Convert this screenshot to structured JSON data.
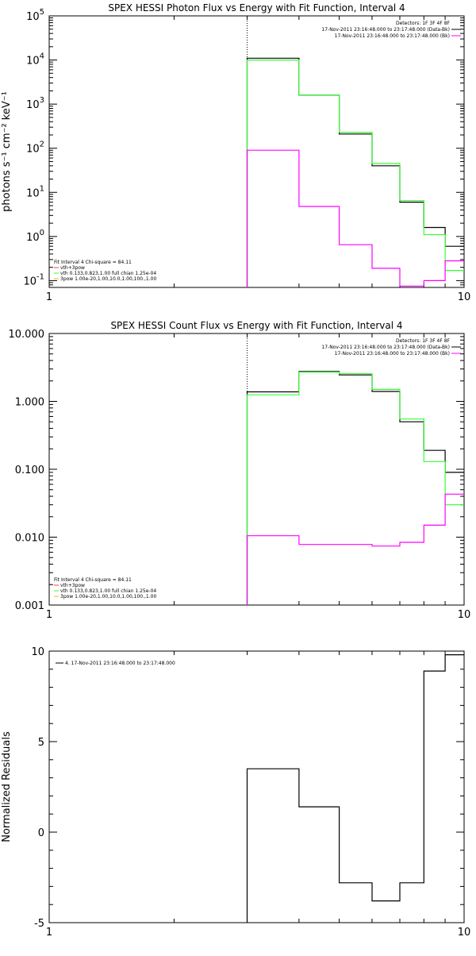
{
  "colors": {
    "background": "#ffffff",
    "axes": "#000000",
    "data": "#000000",
    "total_fit": "#33ff33",
    "vth_fit": "#33ff33",
    "background_spectrum": "#ff00ff",
    "thermal_legend": "#ff3b3b",
    "spov_legend": "#e8c000"
  },
  "chart_data": [
    {
      "type": "line",
      "panel": "photon",
      "title": "SPEX HESSI Photon Flux vs Energy with Fit Function, Interval 4",
      "xlabel": "",
      "ylabel": "photons s⁻¹ cm⁻² keV⁻¹",
      "xscale": "log",
      "yscale": "log",
      "xlim": [
        1,
        10
      ],
      "ylim": [
        0.07,
        100000
      ],
      "xticks": [
        "1",
        "10"
      ],
      "yticks": [
        {
          "label": "10",
          "sup": "-1",
          "v": 0.1
        },
        {
          "label": "10",
          "sup": "0",
          "v": 1
        },
        {
          "label": "10",
          "sup": "1",
          "v": 10
        },
        {
          "label": "10",
          "sup": "2",
          "v": 100
        },
        {
          "label": "10",
          "sup": "3",
          "v": 1000
        },
        {
          "label": "10",
          "sup": "4",
          "v": 10000
        },
        {
          "label": "10",
          "sup": "5",
          "v": 100000
        }
      ],
      "grid": false,
      "marker_line_x": 3,
      "bin_edges": [
        3,
        4,
        5,
        6,
        7,
        8,
        9,
        10
      ],
      "series": [
        {
          "color": "#000000",
          "values": [
            11000,
            1600,
            210,
            40,
            6,
            1.6,
            0.6
          ]
        },
        {
          "color": "#33ff33",
          "values": [
            10000,
            1600,
            230,
            45,
            6.5,
            1.1,
            0.17
          ]
        },
        {
          "color": "#ff00ff",
          "values": [
            90,
            4.8,
            0.65,
            0.19,
            0.075,
            0.1,
            0.28
          ]
        }
      ],
      "legend_top_right": {
        "detectors": "Detectors: 1F 3F 4F 8F",
        "entries": [
          {
            "text": "17-Nov-2011 23:16:48.000 to 23:17:48.000 (Data-Bk)",
            "color": "#000000"
          },
          {
            "text": "17-Nov-2011 23:16:48.000 to 23:17:48.000 (Bk)",
            "color": "#ff00ff"
          }
        ]
      },
      "legend_bottom_left": {
        "header": "Fit Interval  4     Chi-square = 84.11",
        "entries": [
          {
            "text": "vth+3pow",
            "color": "#ff3b3b"
          },
          {
            "text": "vth 0.133,0.823,1.00  full chian 1.25e-04",
            "color": "#33ff33"
          },
          {
            "text": "3pow 1.00e-20,1.00,10.0,1.00,100.,1.00",
            "color": "#e8c000"
          }
        ]
      }
    },
    {
      "type": "line",
      "panel": "count",
      "title": "SPEX HESSI Count Flux vs Energy with Fit Function, Interval 4",
      "xlabel": "",
      "ylabel": "",
      "xscale": "log",
      "yscale": "log",
      "xlim": [
        1,
        10
      ],
      "ylim": [
        0.001,
        10
      ],
      "xticks": [
        "1",
        "10"
      ],
      "yticks": [
        {
          "label": "0.001",
          "sup": "",
          "v": 0.001
        },
        {
          "label": "0.010",
          "sup": "",
          "v": 0.01
        },
        {
          "label": "0.100",
          "sup": "",
          "v": 0.1
        },
        {
          "label": "1.000",
          "sup": "",
          "v": 1
        },
        {
          "label": "10.000",
          "sup": "",
          "v": 10
        }
      ],
      "grid": false,
      "marker_line_x": 3,
      "bin_edges": [
        3,
        4,
        5,
        6,
        7,
        8,
        9,
        10
      ],
      "series": [
        {
          "color": "#000000",
          "values": [
            1.38,
            2.75,
            2.45,
            1.4,
            0.5,
            0.19,
            0.09
          ]
        },
        {
          "color": "#33ff33",
          "values": [
            1.25,
            2.7,
            2.55,
            1.5,
            0.55,
            0.13,
            0.03
          ]
        },
        {
          "color": "#ff00ff",
          "values": [
            0.0105,
            0.0078,
            0.0078,
            0.0074,
            0.0084,
            0.015,
            0.043
          ]
        }
      ],
      "legend_top_right": {
        "detectors": "Detectors: 1F 3F 4F 8F",
        "entries": [
          {
            "text": "17-Nov-2011 23:16:48.000 to 23:17:48.000 (Data-Bk)",
            "color": "#000000"
          },
          {
            "text": "17-Nov-2011 23:16:48.000 to 23:17:48.000 (Bk)",
            "color": "#ff00ff"
          }
        ]
      },
      "legend_bottom_left": {
        "header": "Fit Interval  4     Chi-square = 84.11",
        "entries": [
          {
            "text": "vth+3pow",
            "color": "#ff3b3b"
          },
          {
            "text": "vth 0.133,0.823,1.00  full chian 1.25e-04",
            "color": "#33ff33"
          },
          {
            "text": "3pow 1.00e-20,1.00,10.0,1.00,100.,1.00",
            "color": "#e8c000"
          }
        ]
      }
    },
    {
      "type": "line",
      "panel": "residuals",
      "title": "",
      "xlabel": "",
      "ylabel": "Normalized Residuals",
      "xscale": "log",
      "yscale": "linear",
      "xlim": [
        1,
        10
      ],
      "ylim": [
        -5,
        10
      ],
      "xticks": [
        "1",
        "10"
      ],
      "yticks": [
        {
          "label": "-5",
          "sup": "",
          "v": -5
        },
        {
          "label": "0",
          "sup": "",
          "v": 0
        },
        {
          "label": "5",
          "sup": "",
          "v": 5
        },
        {
          "label": "10",
          "sup": "",
          "v": 10
        }
      ],
      "grid": false,
      "bin_edges": [
        3,
        4,
        5,
        6,
        7,
        8,
        9,
        10
      ],
      "series": [
        {
          "color": "#000000",
          "values": [
            3.5,
            1.4,
            -2.8,
            -3.8,
            -2.8,
            8.9,
            9.8
          ]
        }
      ],
      "legend_top_left": {
        "entries": [
          {
            "text": "4. 17-Nov-2011 23:16:48.000 to 23:17:48.000",
            "color": "#000000"
          }
        ]
      }
    }
  ]
}
